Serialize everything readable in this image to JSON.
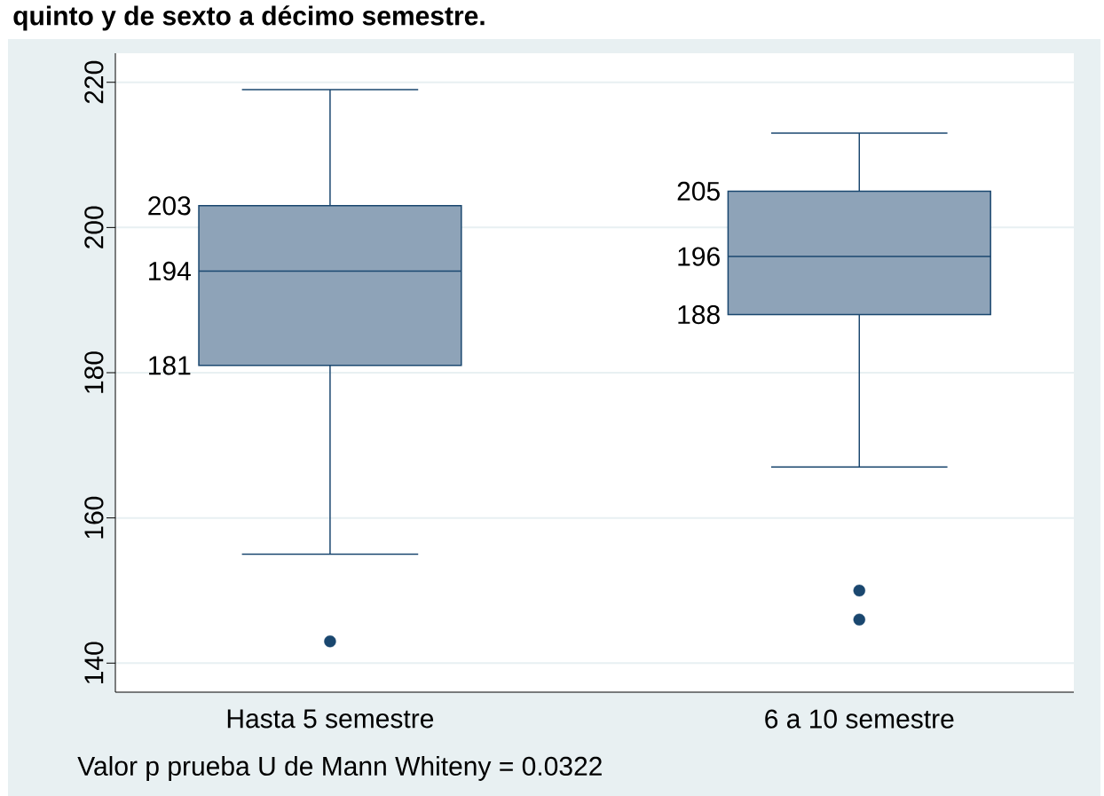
{
  "chart_data": {
    "type": "box",
    "title": "quinto y de sexto a décimo semestre.",
    "categories": [
      "Hasta 5 semestre",
      "6 a 10 semestre"
    ],
    "series": [
      {
        "color": "#8ea3b8",
        "boxes": [
          {
            "low": 155,
            "q1": 181,
            "median": 194,
            "q3": 203,
            "high": 219,
            "outliers": [
              143
            ]
          },
          {
            "low": 167,
            "q1": 188,
            "median": 196,
            "q3": 205,
            "high": 213,
            "outliers": [
              150,
              146
            ]
          }
        ]
      }
    ],
    "ylim": [
      136,
      224
    ],
    "yticks": [
      140,
      160,
      180,
      200,
      220
    ],
    "grid": "y",
    "annotations": [
      "Valor p prueba U de Mann Whiteny = 0.0322",
      "203",
      "194",
      "181",
      "205",
      "196",
      "188"
    ]
  }
}
